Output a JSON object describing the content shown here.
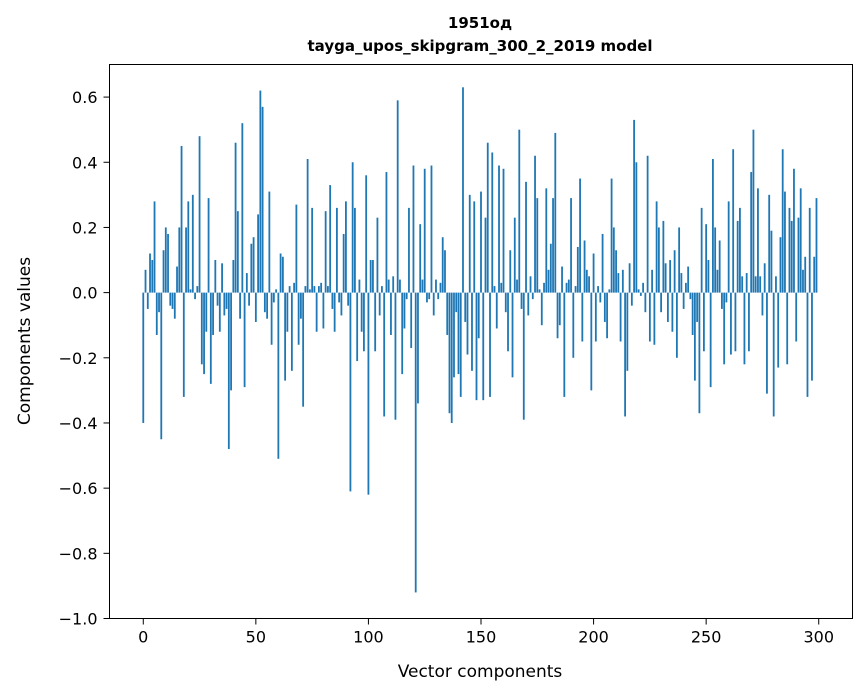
{
  "chart_data": {
    "type": "bar",
    "title": "1951од",
    "subtitle": "tayga_upos_skipgram_300_2_2019 model",
    "xlabel": "Vector components",
    "ylabel": "Components values",
    "xlim": [
      -15,
      315
    ],
    "ylim": [
      -1.0,
      0.7
    ],
    "xticks": [
      0,
      50,
      100,
      150,
      200,
      250,
      300
    ],
    "xtick_labels": [
      "0",
      "50",
      "100",
      "150",
      "200",
      "250",
      "300"
    ],
    "yticks": [
      -1.0,
      -0.8,
      -0.6,
      -0.4,
      -0.2,
      0.0,
      0.2,
      0.4,
      0.6
    ],
    "ytick_labels": [
      "−1.0",
      "−0.8",
      "−0.6",
      "−0.4",
      "−0.2",
      "0.0",
      "0.2",
      "0.4",
      "0.6"
    ],
    "grid": false,
    "bar_color": "#1f77b4",
    "x": [
      0,
      1,
      2,
      3,
      4,
      5,
      6,
      7,
      8,
      9,
      10,
      11,
      12,
      13,
      14,
      15,
      16,
      17,
      18,
      19,
      20,
      21,
      22,
      23,
      24,
      25,
      26,
      27,
      28,
      29,
      30,
      31,
      32,
      33,
      34,
      35,
      36,
      37,
      38,
      39,
      40,
      41,
      42,
      43,
      44,
      45,
      46,
      47,
      48,
      49,
      50,
      51,
      52,
      53,
      54,
      55,
      56,
      57,
      58,
      59,
      60,
      61,
      62,
      63,
      64,
      65,
      66,
      67,
      68,
      69,
      70,
      71,
      72,
      73,
      74,
      75,
      76,
      77,
      78,
      79,
      80,
      81,
      82,
      83,
      84,
      85,
      86,
      87,
      88,
      89,
      90,
      91,
      92,
      93,
      94,
      95,
      96,
      97,
      98,
      99,
      100,
      101,
      102,
      103,
      104,
      105,
      106,
      107,
      108,
      109,
      110,
      111,
      112,
      113,
      114,
      115,
      116,
      117,
      118,
      119,
      120,
      121,
      122,
      123,
      124,
      125,
      126,
      127,
      128,
      129,
      130,
      131,
      132,
      133,
      134,
      135,
      136,
      137,
      138,
      139,
      140,
      141,
      142,
      143,
      144,
      145,
      146,
      147,
      148,
      149,
      150,
      151,
      152,
      153,
      154,
      155,
      156,
      157,
      158,
      159,
      160,
      161,
      162,
      163,
      164,
      165,
      166,
      167,
      168,
      169,
      170,
      171,
      172,
      173,
      174,
      175,
      176,
      177,
      178,
      179,
      180,
      181,
      182,
      183,
      184,
      185,
      186,
      187,
      188,
      189,
      190,
      191,
      192,
      193,
      194,
      195,
      196,
      197,
      198,
      199,
      200,
      201,
      202,
      203,
      204,
      205,
      206,
      207,
      208,
      209,
      210,
      211,
      212,
      213,
      214,
      215,
      216,
      217,
      218,
      219,
      220,
      221,
      222,
      223,
      224,
      225,
      226,
      227,
      228,
      229,
      230,
      231,
      232,
      233,
      234,
      235,
      236,
      237,
      238,
      239,
      240,
      241,
      242,
      243,
      244,
      245,
      246,
      247,
      248,
      249,
      250,
      251,
      252,
      253,
      254,
      255,
      256,
      257,
      258,
      259,
      260,
      261,
      262,
      263,
      264,
      265,
      266,
      267,
      268,
      269,
      270,
      271,
      272,
      273,
      274,
      275,
      276,
      277,
      278,
      279,
      280,
      281,
      282,
      283,
      284,
      285,
      286,
      287,
      288,
      289,
      290,
      291,
      292,
      293,
      294,
      295,
      296,
      297,
      298,
      299
    ],
    "values": [
      -0.4,
      0.07,
      -0.05,
      0.12,
      0.1,
      0.28,
      -0.13,
      -0.06,
      -0.45,
      0.13,
      0.2,
      0.18,
      -0.04,
      -0.05,
      -0.08,
      0.08,
      0.2,
      0.45,
      -0.32,
      0.2,
      0.28,
      0.01,
      0.3,
      -0.02,
      0.02,
      0.48,
      -0.22,
      -0.25,
      -0.12,
      0.29,
      -0.28,
      -0.13,
      0.1,
      -0.04,
      -0.12,
      0.09,
      -0.07,
      -0.05,
      -0.48,
      -0.3,
      0.1,
      0.46,
      0.25,
      -0.08,
      0.52,
      -0.29,
      0.06,
      -0.04,
      0.15,
      0.17,
      -0.09,
      0.24,
      0.62,
      0.57,
      -0.06,
      -0.08,
      0.31,
      -0.16,
      -0.03,
      0.01,
      -0.51,
      0.12,
      0.11,
      -0.27,
      -0.12,
      0.02,
      -0.24,
      0.03,
      0.27,
      -0.16,
      -0.08,
      -0.35,
      0.02,
      0.41,
      0.01,
      0.26,
      0.02,
      -0.12,
      0.02,
      0.03,
      -0.11,
      0.25,
      0.02,
      0.33,
      -0.05,
      -0.12,
      0.26,
      -0.03,
      -0.07,
      0.18,
      0.28,
      -0.04,
      -0.61,
      0.4,
      0.26,
      -0.21,
      0.04,
      -0.12,
      -0.18,
      0.36,
      -0.62,
      0.1,
      0.1,
      -0.18,
      0.23,
      -0.07,
      0.02,
      -0.38,
      0.37,
      0.04,
      -0.13,
      0.05,
      -0.39,
      0.59,
      0.04,
      -0.25,
      -0.11,
      -0.02,
      0.26,
      -0.17,
      0.39,
      -0.92,
      -0.34,
      0.21,
      0.04,
      0.38,
      -0.03,
      -0.02,
      0.39,
      -0.07,
      0.04,
      -0.02,
      0.03,
      0.17,
      0.13,
      -0.13,
      -0.37,
      -0.4,
      -0.26,
      -0.06,
      -0.25,
      -0.32,
      0.63,
      -0.09,
      -0.19,
      0.3,
      -0.24,
      0.28,
      -0.33,
      -0.14,
      0.31,
      -0.33,
      0.23,
      0.46,
      -0.32,
      0.43,
      0.02,
      -0.11,
      0.39,
      0.03,
      0.38,
      -0.06,
      -0.18,
      0.13,
      -0.26,
      0.23,
      0.04,
      0.5,
      -0.05,
      -0.39,
      0.34,
      -0.07,
      0.05,
      -0.02,
      0.42,
      0.29,
      0.01,
      -0.1,
      0.03,
      0.32,
      0.07,
      0.15,
      0.29,
      0.49,
      -0.14,
      -0.1,
      0.08,
      -0.32,
      0.03,
      0.04,
      0.29,
      -0.2,
      0.02,
      0.14,
      0.35,
      -0.15,
      0.16,
      0.07,
      0.05,
      -0.3,
      0.12,
      -0.15,
      0.02,
      -0.03,
      0.18,
      -0.09,
      -0.14,
      0.01,
      0.35,
      0.2,
      0.13,
      0.06,
      -0.15,
      0.07,
      -0.38,
      -0.24,
      0.09,
      -0.04,
      0.53,
      0.4,
      0.01,
      -0.01,
      0.03,
      -0.06,
      0.42,
      -0.15,
      0.07,
      -0.16,
      0.28,
      0.2,
      -0.06,
      0.22,
      0.09,
      -0.09,
      0.1,
      -0.12,
      0.13,
      -0.2,
      0.2,
      0.06,
      -0.05,
      0.03,
      0.08,
      -0.02,
      -0.13,
      -0.27,
      -0.09,
      -0.37,
      0.26,
      -0.18,
      0.21,
      0.1,
      -0.29,
      0.41,
      0.2,
      0.07,
      0.16,
      -0.05,
      -0.22,
      -0.03,
      0.28,
      -0.19,
      0.44,
      -0.18,
      0.22,
      0.26,
      0.05,
      -0.22,
      0.06,
      -0.18,
      0.37,
      0.5,
      0.05,
      0.32,
      0.05,
      -0.07,
      0.09,
      -0.31,
      0.3,
      0.19,
      -0.38,
      0.05,
      -0.23,
      0.17,
      0.44,
      0.31,
      -0.22,
      0.26,
      0.22,
      0.38,
      -0.15,
      0.23,
      0.32,
      0.07,
      0.11,
      -0.32,
      0.26,
      -0.27,
      0.11,
      0.29
    ]
  }
}
